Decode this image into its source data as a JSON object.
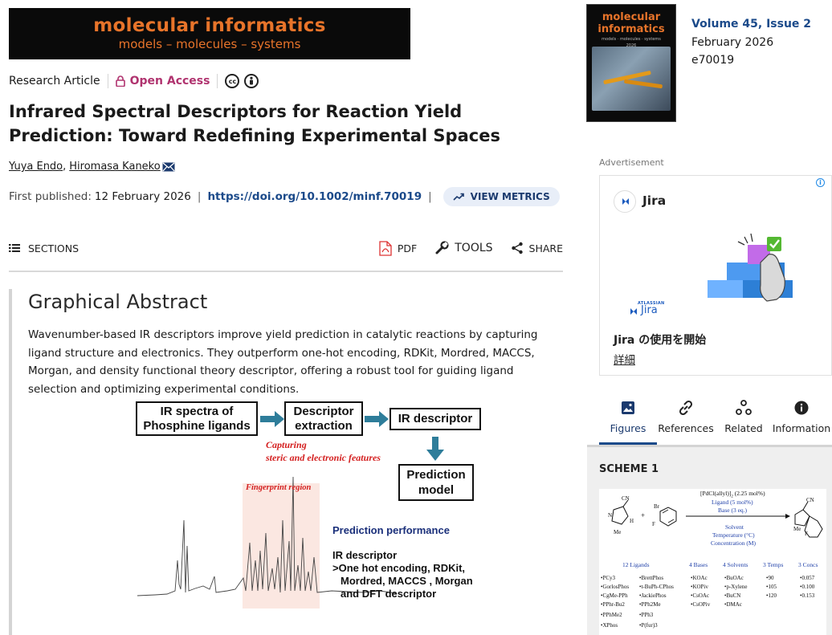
{
  "banner": {
    "line1": "molecular informatics",
    "line2": "models – molecules – systems"
  },
  "article": {
    "type": "Research Article",
    "access": "Open Access",
    "license_icons": [
      "cc-icon",
      "attribution-icon"
    ],
    "title": "Infrared Spectral Descriptors for Reaction Yield Prediction: Toward Redefining Experimental Spaces",
    "authors": [
      "Yuya Endo",
      "Hiromasa Kaneko"
    ],
    "author_sep": ",",
    "published_label": "First published:",
    "published_date": "12 February 2026",
    "doi": "https://doi.org/10.1002/minf.70019",
    "metrics_label": "VIEW METRICS"
  },
  "toolbar": {
    "sections": "SECTIONS",
    "pdf": "PDF",
    "tools": "TOOLS",
    "share": "SHARE"
  },
  "graphical_abstract": {
    "heading": "Graphical Abstract",
    "text": "Wavenumber-based IR descriptors improve yield prediction in catalytic reactions by capturing ligand structure and electronics. They outperform one-hot encoding, RDKit, Mordred, MACCS, Morgan, and density functional theory descriptor, offering a robust tool for guiding ligand selection and optimizing experimental conditions.",
    "figure": {
      "box1_line1": "IR spectra of",
      "box1_line2": "Phosphine ligands",
      "box2_line1": "Descriptor",
      "box2_line2": "extraction",
      "box3": "IR descriptor",
      "box4_line1": "Prediction",
      "box4_line2": "model",
      "capturing_line1": "Capturing",
      "capturing_line2": "steric and electronic features",
      "fingerprint": "Fingerprint region",
      "perf_title": "Prediction performance",
      "perf_line1": "IR descriptor",
      "perf_line2": ">One hot encoding, RDKit,",
      "perf_line3": "Mordred, MACCS , Morgan",
      "perf_line4": "and DFT descriptor"
    }
  },
  "journal": {
    "cover_title_1": "molecular",
    "cover_title_2": "informatics",
    "cover_sub": "models · molecules · systems",
    "cover_year": "2026",
    "volume": "Volume 45, Issue 2",
    "date": "February 2026",
    "article_number": "e70019"
  },
  "ad": {
    "label": "Advertisement",
    "brand": "Jira",
    "atlassian_small": "ATLASSIAN",
    "atlassian_jira": "Jira",
    "cta": "Jira の使用を開始",
    "details": "詳細",
    "accent": "#1d5cbf"
  },
  "tabs": [
    {
      "label": "Figures",
      "active": true
    },
    {
      "label": "References",
      "active": false
    },
    {
      "label": "Related",
      "active": false
    },
    {
      "label": "Information",
      "active": false
    }
  ],
  "scheme": {
    "title": "SCHEME 1",
    "reagent1": "[PdCl(allyl)]",
    "reagent1_sub": "2",
    "reagent1_tail": " (2.25 mol%)",
    "ligand": "Ligand (5 mol%)",
    "base": "Base (3 eq.)",
    "solvent": "Solvent",
    "temperature": "Temperature (°C)",
    "concentration": "Concentration (M)",
    "cols": [
      {
        "head": "12 Ligands",
        "items": [
          "•PCy3",
          "•GorlosPhos",
          "•CgMe-PPh",
          "•PPhr-Bu2",
          "•PPhMe2",
          "•XPhos"
        ]
      },
      {
        "head": "",
        "items": [
          "•BrettPhos",
          "•t-BuPh-CPhos",
          "•JackiePhos",
          "•PPh2Me",
          "•PPh3",
          "•P(fur)3"
        ]
      },
      {
        "head": "4 Bases",
        "items": [
          "•KOAc",
          "•KOPiv",
          "•CsOAc",
          "•CsOPiv"
        ]
      },
      {
        "head": "4 Solvents",
        "items": [
          "•BuOAc",
          "•p-Xylene",
          "•BuCN",
          "•DMAc"
        ]
      },
      {
        "head": "3 Temps",
        "items": [
          "•90",
          "•105",
          "•120"
        ]
      },
      {
        "head": "3 Concs",
        "items": [
          "•0.057",
          "•0.100",
          "•0.153"
        ]
      }
    ],
    "cn": "CN",
    "br": "Br",
    "me": "Me",
    "h": "H",
    "f": "F",
    "n": "N",
    "plus": "+"
  }
}
